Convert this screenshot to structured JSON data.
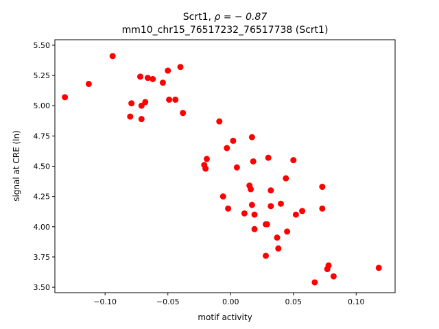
{
  "chart_data": {
    "type": "scatter",
    "title_prefix": "Scrt1, ",
    "title_rho": "ρ = − 0.87",
    "subtitle": "mm10_chr15_76517232_76517738 (Scrt1)",
    "xlabel": "motif activity",
    "ylabel": "signal at CRE (ln)",
    "xlim": [
      -0.14,
      0.131
    ],
    "ylim": [
      3.455,
      5.545
    ],
    "x_ticks": [
      -0.1,
      -0.05,
      0.0,
      0.05,
      0.1
    ],
    "x_tick_labels": [
      "−0.10",
      "−0.05",
      "0.00",
      "0.05",
      "0.10"
    ],
    "y_ticks": [
      3.5,
      3.75,
      4.0,
      4.25,
      4.5,
      4.75,
      5.0,
      5.25,
      5.5
    ],
    "y_tick_labels": [
      "3.50",
      "3.75",
      "4.00",
      "4.25",
      "4.50",
      "4.75",
      "5.00",
      "5.25",
      "5.50"
    ],
    "marker_color": "#ff0000",
    "grid": false,
    "points": [
      {
        "x": -0.094,
        "y": 5.41
      },
      {
        "x": -0.132,
        "y": 5.07
      },
      {
        "x": -0.113,
        "y": 5.18
      },
      {
        "x": -0.072,
        "y": 5.24
      },
      {
        "x": -0.066,
        "y": 5.23
      },
      {
        "x": -0.062,
        "y": 5.22
      },
      {
        "x": -0.054,
        "y": 5.19
      },
      {
        "x": -0.05,
        "y": 5.29
      },
      {
        "x": -0.04,
        "y": 5.32
      },
      {
        "x": -0.079,
        "y": 5.02
      },
      {
        "x": -0.071,
        "y": 5.0
      },
      {
        "x": -0.068,
        "y": 5.03
      },
      {
        "x": -0.049,
        "y": 5.05
      },
      {
        "x": -0.044,
        "y": 5.05
      },
      {
        "x": -0.08,
        "y": 4.91
      },
      {
        "x": -0.071,
        "y": 4.89
      },
      {
        "x": -0.038,
        "y": 4.94
      },
      {
        "x": -0.009,
        "y": 4.87
      },
      {
        "x": 0.002,
        "y": 4.71
      },
      {
        "x": 0.017,
        "y": 4.74
      },
      {
        "x": -0.003,
        "y": 4.65
      },
      {
        "x": -0.019,
        "y": 4.56
      },
      {
        "x": -0.021,
        "y": 4.51
      },
      {
        "x": -0.02,
        "y": 4.48
      },
      {
        "x": 0.005,
        "y": 4.49
      },
      {
        "x": 0.018,
        "y": 4.54
      },
      {
        "x": 0.03,
        "y": 4.57
      },
      {
        "x": 0.05,
        "y": 4.55
      },
      {
        "x": 0.044,
        "y": 4.4
      },
      {
        "x": 0.015,
        "y": 4.34
      },
      {
        "x": 0.016,
        "y": 4.31
      },
      {
        "x": 0.032,
        "y": 4.3
      },
      {
        "x": 0.073,
        "y": 4.33
      },
      {
        "x": -0.006,
        "y": 4.25
      },
      {
        "x": 0.017,
        "y": 4.18
      },
      {
        "x": 0.032,
        "y": 4.17
      },
      {
        "x": 0.04,
        "y": 4.19
      },
      {
        "x": -0.002,
        "y": 4.15
      },
      {
        "x": 0.011,
        "y": 4.11
      },
      {
        "x": 0.019,
        "y": 4.1
      },
      {
        "x": 0.057,
        "y": 4.13
      },
      {
        "x": 0.052,
        "y": 4.1
      },
      {
        "x": 0.073,
        "y": 4.15
      },
      {
        "x": 0.028,
        "y": 4.02
      },
      {
        "x": 0.029,
        "y": 4.02
      },
      {
        "x": 0.019,
        "y": 3.98
      },
      {
        "x": 0.045,
        "y": 3.96
      },
      {
        "x": 0.037,
        "y": 3.91
      },
      {
        "x": 0.038,
        "y": 3.82
      },
      {
        "x": 0.028,
        "y": 3.76
      },
      {
        "x": 0.078,
        "y": 3.68
      },
      {
        "x": 0.077,
        "y": 3.65
      },
      {
        "x": 0.082,
        "y": 3.59
      },
      {
        "x": 0.067,
        "y": 3.54
      },
      {
        "x": 0.118,
        "y": 3.66
      }
    ]
  }
}
